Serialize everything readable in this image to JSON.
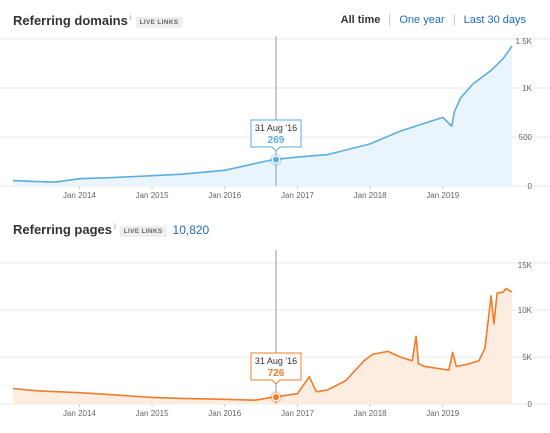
{
  "sections": {
    "domains": {
      "title": "Referring domains",
      "info": "i",
      "badge": "LIVE LINKS"
    },
    "pages": {
      "title": "Referring pages",
      "info": "i",
      "badge": "LIVE LINKS",
      "count": "10,820"
    }
  },
  "range_tabs": [
    {
      "label": "All time",
      "active": true
    },
    {
      "label": "One year",
      "active": false
    },
    {
      "label": "Last 30 days",
      "active": false
    }
  ],
  "tooltips": {
    "domains": {
      "date": "31 Aug '16",
      "value": "269"
    },
    "pages": {
      "date": "31 Aug '16",
      "value": "726"
    }
  },
  "colors": {
    "domains_line": "#5aaee0",
    "domains_fill": "#e9f4fc",
    "pages_line": "#f07c2a",
    "pages_fill": "#fdece0",
    "accent_link": "#1e6bb8"
  },
  "chart_data": [
    {
      "type": "area",
      "title": "Referring domains",
      "x_tick_labels": [
        "Jan 2014",
        "Jan 2015",
        "Jan 2016",
        "Jan 2017",
        "Jan 2018",
        "Jan 2019"
      ],
      "y_tick_labels": [
        "0",
        "500",
        "1K",
        "1.5K"
      ],
      "ylim": [
        0,
        1500
      ],
      "xlim": [
        "2013-02-01",
        "2019-12-15"
      ],
      "grid": true,
      "x": [
        "2013-02-01",
        "2013-06-01",
        "2013-09-01",
        "2014-01-01",
        "2014-06-01",
        "2015-01-01",
        "2015-06-01",
        "2016-01-01",
        "2016-08-31",
        "2017-01-01",
        "2017-06-01",
        "2018-01-01",
        "2018-06-01",
        "2018-10-01",
        "2019-01-01",
        "2019-02-15",
        "2019-03-01",
        "2019-04-01",
        "2019-06-01",
        "2019-09-01",
        "2019-11-01",
        "2019-12-15"
      ],
      "values": [
        55,
        45,
        40,
        75,
        85,
        105,
        120,
        160,
        269,
        295,
        320,
        430,
        560,
        640,
        700,
        610,
        760,
        900,
        1040,
        1180,
        1300,
        1430
      ]
    },
    {
      "type": "area",
      "title": "Referring pages",
      "x_tick_labels": [
        "Jan 2014",
        "Jan 2015",
        "Jan 2016",
        "Jan 2017",
        "Jan 2018",
        "Jan 2019"
      ],
      "y_tick_labels": [
        "0",
        "5K",
        "10K",
        "15K"
      ],
      "ylim": [
        0,
        15000
      ],
      "xlim": [
        "2013-02-01",
        "2019-12-15"
      ],
      "grid": true,
      "x": [
        "2013-02-01",
        "2013-06-01",
        "2014-01-01",
        "2014-06-01",
        "2015-01-01",
        "2015-06-01",
        "2016-01-01",
        "2016-06-01",
        "2016-08-31",
        "2017-01-01",
        "2017-03-01",
        "2017-04-01",
        "2017-04-10",
        "2017-06-01",
        "2017-09-01",
        "2017-12-01",
        "2018-01-15",
        "2018-04-01",
        "2018-06-01",
        "2018-08-01",
        "2018-08-20",
        "2018-09-01",
        "2018-10-01",
        "2019-01-01",
        "2019-02-01",
        "2019-02-20",
        "2019-03-10",
        "2019-05-01",
        "2019-07-01",
        "2019-08-01",
        "2019-09-01",
        "2019-09-15",
        "2019-10-01",
        "2019-11-01",
        "2019-11-15",
        "2019-12-15"
      ],
      "values": [
        1650,
        1400,
        1200,
        1000,
        700,
        600,
        500,
        400,
        726,
        1100,
        2900,
        1500,
        1300,
        1500,
        2500,
        4600,
        5300,
        5600,
        5000,
        4600,
        7200,
        4300,
        4000,
        3700,
        3600,
        5500,
        4000,
        4200,
        4600,
        5900,
        11500,
        8500,
        11800,
        11900,
        12300,
        11900
      ]
    }
  ]
}
